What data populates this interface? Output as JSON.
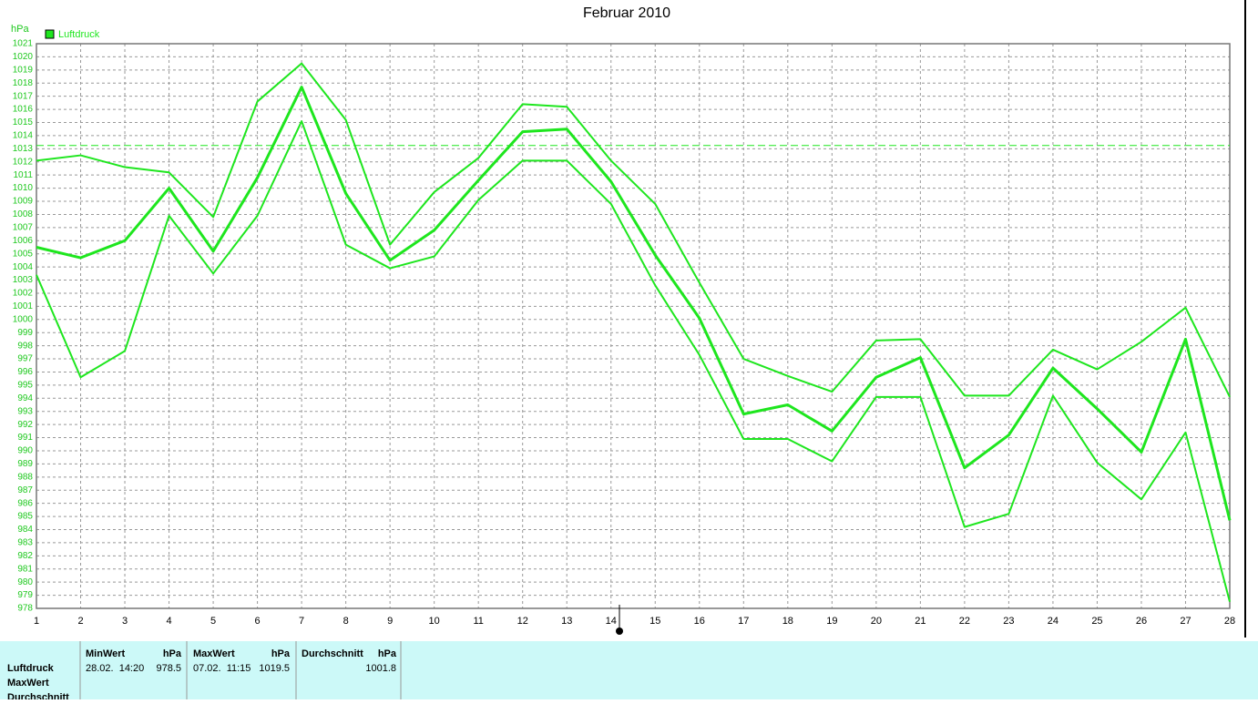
{
  "chart_data": {
    "type": "line",
    "title": "Februar 2010",
    "y_label": "hPa",
    "x": [
      1,
      2,
      3,
      4,
      5,
      6,
      7,
      8,
      9,
      10,
      11,
      12,
      13,
      14,
      15,
      16,
      17,
      18,
      19,
      20,
      21,
      22,
      23,
      24,
      25,
      26,
      27,
      28
    ],
    "xlim": [
      1,
      28
    ],
    "xticks": [
      1,
      2,
      3,
      4,
      5,
      6,
      7,
      8,
      9,
      10,
      11,
      12,
      13,
      14,
      15,
      16,
      17,
      18,
      19,
      20,
      21,
      22,
      23,
      24,
      25,
      26,
      27,
      28
    ],
    "ylim": [
      978,
      1021
    ],
    "yticks": [
      978,
      979,
      980,
      981,
      982,
      983,
      984,
      985,
      986,
      987,
      988,
      989,
      990,
      991,
      992,
      993,
      994,
      995,
      996,
      997,
      998,
      999,
      1000,
      1001,
      1002,
      1003,
      1004,
      1005,
      1006,
      1007,
      1008,
      1009,
      1010,
      1011,
      1012,
      1013,
      1014,
      1015,
      1016,
      1017,
      1018,
      1019,
      1020,
      1021
    ],
    "grid": true,
    "reference_line": 1013.25,
    "series": [
      {
        "name": "Luftdruck",
        "color": "#1ee61e",
        "values": [
          1005.5,
          1004.7,
          1006.0,
          1010.0,
          1005.2,
          1010.8,
          1017.7,
          1009.6,
          1004.5,
          1006.8,
          1010.6,
          1014.3,
          1014.5,
          1010.5,
          1004.9,
          1000.1,
          992.8,
          993.5,
          991.5,
          995.6,
          997.1,
          988.7,
          991.2,
          996.3,
          993.2,
          989.9,
          998.5,
          984.7
        ],
        "upper": [
          1012.1,
          1012.5,
          1011.6,
          1011.2,
          1007.8,
          1016.6,
          1019.5,
          1015.2,
          1005.7,
          1009.7,
          1012.3,
          1016.4,
          1016.2,
          1012.1,
          1008.8,
          1002.8,
          997.0,
          995.7,
          994.5,
          998.4,
          998.5,
          994.2,
          994.2,
          997.7,
          996.2,
          998.3,
          1000.9,
          994.1
        ],
        "lower": [
          1003.4,
          995.6,
          997.6,
          1007.9,
          1003.5,
          1007.9,
          1015.1,
          1005.7,
          1003.9,
          1004.8,
          1009.1,
          1012.1,
          1012.1,
          1008.8,
          1002.6,
          997.3,
          990.9,
          990.9,
          989.2,
          994.1,
          994.1,
          984.2,
          985.2,
          994.2,
          989.1,
          986.3,
          991.4,
          978.5
        ]
      }
    ]
  },
  "stats": {
    "row_labels": [
      "Luftdruck",
      "MaxWert",
      "Durchschnitt"
    ],
    "columns": [
      {
        "title": "MinWert",
        "unit": "hPa",
        "date": "28.02.  14:20",
        "value": 978.5
      },
      {
        "title": "MaxWert",
        "unit": "hPa",
        "date": "07.02.  11:15",
        "value": 1019.5
      },
      {
        "title": "Durchschnitt",
        "unit": "hPa",
        "value": 1001.8
      }
    ]
  }
}
